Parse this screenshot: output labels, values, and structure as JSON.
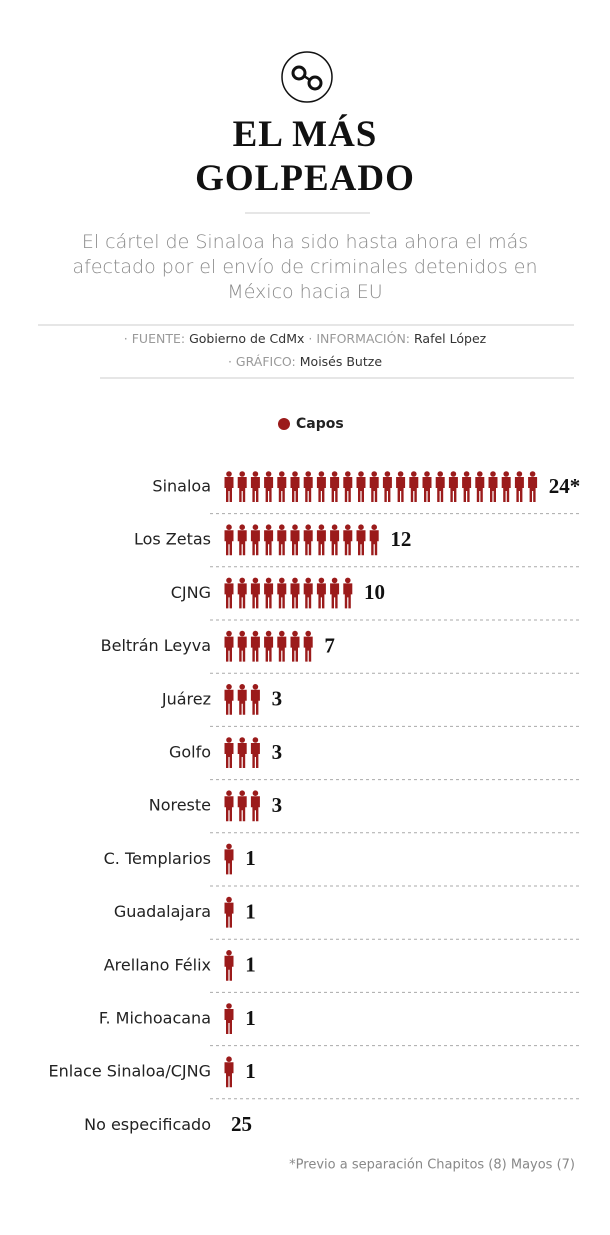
{
  "chart_data": {
    "type": "pictogram",
    "title": "EL MÁS GOLPEADO",
    "subtitle": "El cártel de Sinaloa ha sido hasta ahora el más afectado por el envío de criminales detenidos en México hacia EU",
    "sources": [
      {
        "label": "· FUENTE:",
        "text": "Gobierno de CdMx"
      },
      {
        "label": "· INFORMACIÓN:",
        "text": "Rafel López"
      },
      {
        "label": "· GRÁFICO:",
        "text": "Moisés Butze"
      }
    ],
    "categories": [
      "Sinaloa",
      "Los Zetas",
      "CJNG",
      "Beltrán Leyva",
      "Juárez",
      "Golfo",
      "Noreste",
      "C. Templarios",
      "Guadalajara",
      "Arellano Félix",
      "F. Michoacana",
      "Enlace Sinaloa/CJNG"
    ],
    "series": [
      {
        "name": "Capos",
        "color": "#9b1b1b",
        "values": [
          24,
          12,
          10,
          7,
          3,
          3,
          3,
          1,
          1,
          1,
          1,
          1
        ],
        "value_labels": [
          "24*",
          "12",
          "10",
          "7",
          "3",
          "3",
          "3",
          "1",
          "1",
          "1",
          "1",
          "1"
        ]
      }
    ],
    "unspecified": {
      "category": "No especificado",
      "value": 25
    },
    "footnote": "*Previo a separación Chapitos (8) Mayos (7)"
  }
}
